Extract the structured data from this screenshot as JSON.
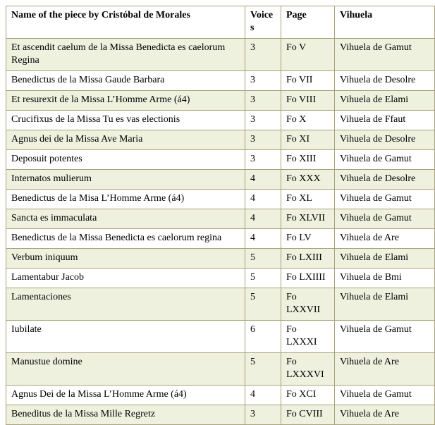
{
  "table": {
    "colors": {
      "border": "#a8a17a",
      "alt_row_bg": "#eef1de",
      "row_bg": "#ffffff",
      "text": "#000000"
    },
    "columns": [
      {
        "key": "name",
        "label": "Name of the piece by Cristóbal de Morales"
      },
      {
        "key": "voices",
        "label": "Voices"
      },
      {
        "key": "page",
        "label": "Page"
      },
      {
        "key": "vihuela",
        "label": "Vihuela"
      }
    ],
    "rows": [
      {
        "name": "Et ascendit caelum de la Missa Benedicta es caelorum Regina",
        "voices": 3,
        "page": "Fo V",
        "vihuela": "Vihuela de Gamut"
      },
      {
        "name": "Benedictus de la Missa Gaude Barbara",
        "voices": 3,
        "page": "Fo VII",
        "vihuela": "Vihuela de Desolre"
      },
      {
        "name": "Et resurexit de la Missa L’Homme Arme (á4)",
        "voices": 3,
        "page": "Fo VIII",
        "vihuela": "Vihuela de Elami"
      },
      {
        "name": "Crucifixus de la Missa Tu es vas electionis",
        "voices": 3,
        "page": "Fo X",
        "vihuela": "Vihuela de Ffaut"
      },
      {
        "name": "Agnus dei de la Missa Ave Maria",
        "voices": 3,
        "page": "Fo XI",
        "vihuela": "Vihuela de Desolre"
      },
      {
        "name": "Deposuit potentes",
        "voices": 3,
        "page": "Fo XIII",
        "vihuela": "Vihuela de Gamut"
      },
      {
        "name": "Internatos mulierum",
        "voices": 4,
        "page": "Fo XXX",
        "vihuela": "Vihuela de Desolre"
      },
      {
        "name": "Benedictus de la Misa L’Homme Arme (á4)",
        "voices": 4,
        "page": "Fo XL",
        "vihuela": "Vihuela de Gamut"
      },
      {
        "name": "Sancta es immaculata",
        "voices": 4,
        "page": "Fo XLVII",
        "vihuela": "Vihuela de Gamut"
      },
      {
        "name": "Benedictus de la Missa Benedicta es caelorum regina",
        "voices": 4,
        "page": "Fo LV",
        "vihuela": "Vihuela de Are"
      },
      {
        "name": "Verbum iniquum",
        "voices": 5,
        "page": "Fo LXIII",
        "vihuela": "Vihuela de Elami"
      },
      {
        "name": "Lamentabur Jacob",
        "voices": 5,
        "page": "Fo LXIIII",
        "vihuela": "Vihuela de Bmi"
      },
      {
        "name": "Lamentaciones",
        "voices": 5,
        "page": "Fo LXXVII",
        "vihuela": "Vihuela de Elami"
      },
      {
        "name": "Iubilate",
        "voices": 6,
        "page": "Fo LXXXI",
        "vihuela": "Vihuela de Gamut"
      },
      {
        "name": "Manustue domine",
        "voices": 5,
        "page": "Fo LXXXVI",
        "vihuela": "Vihuela de Are"
      },
      {
        "name": "Agnus Dei de la Missa L’Homme Arme (á4)",
        "voices": 4,
        "page": "Fo XCI",
        "vihuela": "Vihuela de Gamut"
      },
      {
        "name": "Beneditus de la Missa Mille Regretz",
        "voices": 3,
        "page": "Fo CVIII",
        "vihuela": "Vihuela de Are"
      }
    ]
  }
}
